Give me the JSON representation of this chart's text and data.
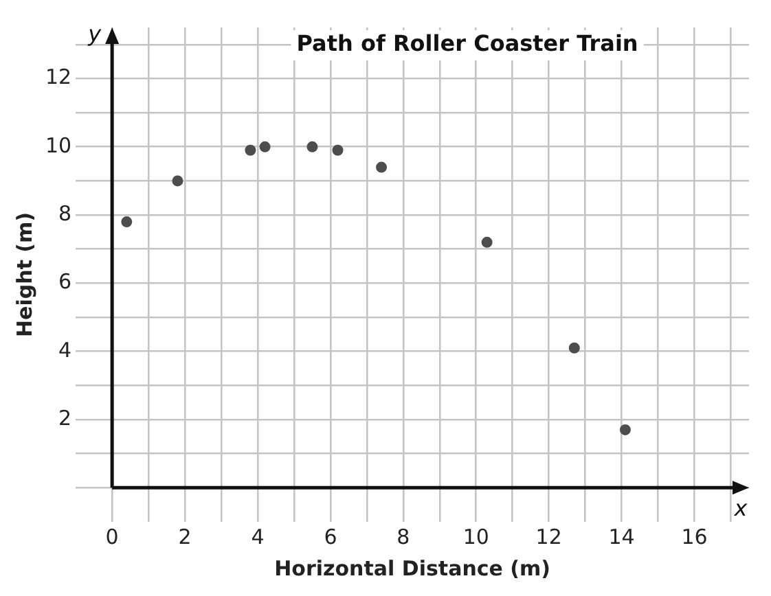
{
  "chart_data": {
    "type": "scatter",
    "title": "Path of Roller Coaster Train",
    "xlabel": "Horizontal Distance (m)",
    "ylabel": "Height (m)",
    "annotations": [
      "x",
      "y"
    ],
    "x": [
      0.4,
      1.8,
      3.8,
      4.2,
      5.5,
      6.2,
      7.4,
      10.3,
      12.7,
      14.1
    ],
    "series": [
      {
        "color": "#4d4d4d",
        "values": [
          7.8,
          9.0,
          9.9,
          10.0,
          10.0,
          9.9,
          9.4,
          7.2,
          4.1,
          1.7
        ]
      }
    ],
    "xlim": [
      -1,
      17.5
    ],
    "ylim": [
      -1,
      13.5
    ],
    "xticks": [
      0,
      {
        "value": 1,
        "label": null
      },
      2,
      {
        "value": 3,
        "label": null
      },
      4,
      {
        "value": 5,
        "label": null
      },
      6,
      {
        "value": 7,
        "label": null
      },
      8,
      {
        "value": 9,
        "label": null
      },
      10,
      {
        "value": 11,
        "label": null
      },
      12,
      {
        "value": 13,
        "label": null
      },
      14,
      {
        "value": 15,
        "label": null
      },
      16,
      {
        "value": 17,
        "label": null
      }
    ],
    "yticks": [
      {
        "value": 0,
        "label": null
      },
      {
        "value": 1,
        "label": null
      },
      2,
      {
        "value": 3,
        "label": null
      },
      4,
      {
        "value": 5,
        "label": null
      },
      6,
      {
        "value": 7,
        "label": null
      },
      8,
      {
        "value": 9,
        "label": null
      },
      10,
      {
        "value": 11,
        "label": null
      },
      12,
      {
        "value": 13,
        "label": null
      }
    ],
    "grid": true,
    "marker": "circle",
    "legend": false
  }
}
